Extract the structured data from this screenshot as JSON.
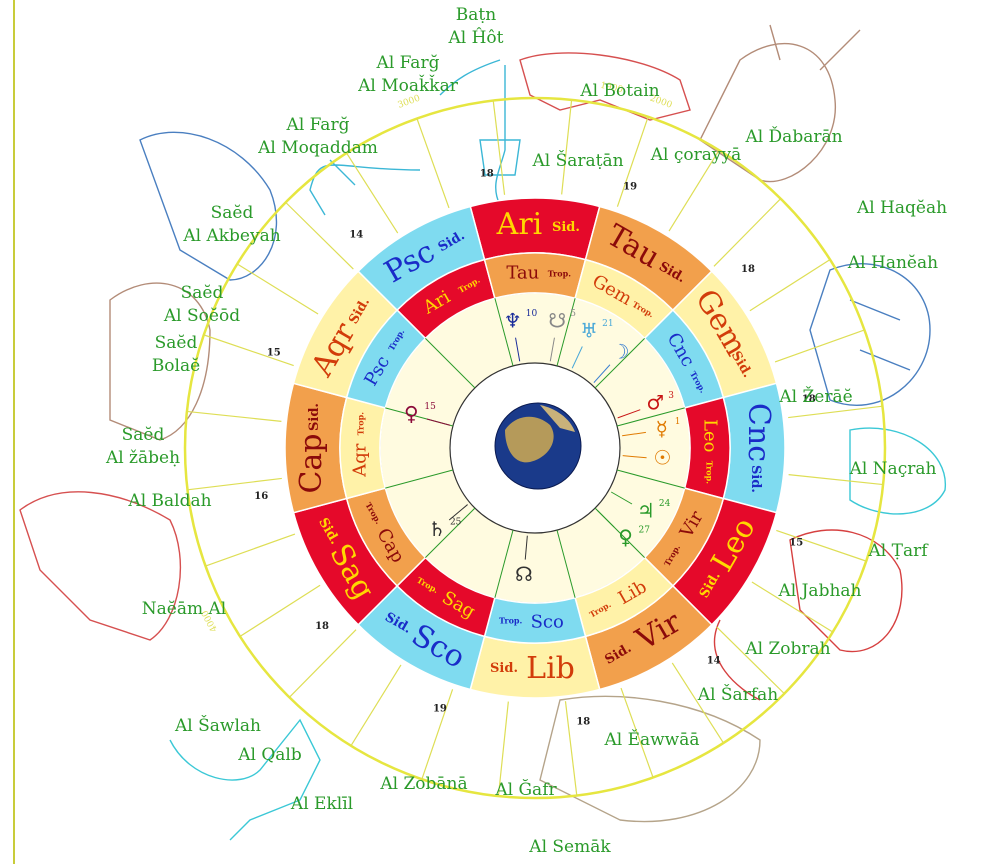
{
  "mansions": [
    {
      "id": "batn-al-hot",
      "lines": [
        "Baṭn",
        "Al Ĥôt"
      ]
    },
    {
      "id": "al-farg-moakkar",
      "lines": [
        "Al Farğ",
        "Al Moaǩǩar"
      ]
    },
    {
      "id": "al-botain",
      "lines": [
        "Al Botain"
      ]
    },
    {
      "id": "al-farg-moqaddam",
      "lines": [
        "Al Farğ",
        "Al Moqaddam"
      ]
    },
    {
      "id": "al-saratan",
      "lines": [
        "Al Šaraṭān"
      ]
    },
    {
      "id": "al-dabaran",
      "lines": [
        "Al Ďabarān"
      ]
    },
    {
      "id": "al-corayya",
      "lines": [
        "Al çorayyā"
      ]
    },
    {
      "id": "sad-al-akbeyah",
      "lines": [
        "Saĕd",
        "Al Akbeyah"
      ]
    },
    {
      "id": "al-haqeah",
      "lines": [
        "Al Haqĕah"
      ]
    },
    {
      "id": "al-haneah",
      "lines": [
        "Al Hanĕah"
      ]
    },
    {
      "id": "sad-al-soeod",
      "lines": [
        "Saĕd",
        "Al Soĕōd"
      ]
    },
    {
      "id": "sad-bolae",
      "lines": [
        "Saĕd",
        "Bolaĕ"
      ]
    },
    {
      "id": "al-zerae",
      "lines": [
        "Al Žerāĕ"
      ]
    },
    {
      "id": "sad-al-zabeh",
      "lines": [
        "Saĕd",
        "Al žābeḥ"
      ]
    },
    {
      "id": "al-nacrah",
      "lines": [
        "Al Naçrah"
      ]
    },
    {
      "id": "al-baldah",
      "lines": [
        "Al Baldah"
      ]
    },
    {
      "id": "al-tarf",
      "lines": [
        "Al Ṭarf"
      ]
    },
    {
      "id": "naeam-al",
      "lines": [
        "Naĕām Al"
      ]
    },
    {
      "id": "al-jabhah",
      "lines": [
        "Al Jabhah"
      ]
    },
    {
      "id": "al-zobrah",
      "lines": [
        "Al Zobrah"
      ]
    },
    {
      "id": "al-sarfah",
      "lines": [
        "Al Šarfah"
      ]
    },
    {
      "id": "al-awwaa",
      "lines": [
        "Al Ěawwāā"
      ]
    },
    {
      "id": "al-sawlah",
      "lines": [
        "Al Šawlah"
      ]
    },
    {
      "id": "al-qalb",
      "lines": [
        "Al Qalb"
      ]
    },
    {
      "id": "al-eklil",
      "lines": [
        "Al Eklīl"
      ]
    },
    {
      "id": "al-zobana",
      "lines": [
        "Al Zobānā"
      ]
    },
    {
      "id": "al-gafr",
      "lines": [
        "Al Ğafr"
      ]
    },
    {
      "id": "al-semak",
      "lines": [
        "Al Semāk"
      ]
    }
  ],
  "sidereal_signs": [
    {
      "abbr": "Ari",
      "tag": "Sid.",
      "color": "#e5092a",
      "text_color": "#ffd800"
    },
    {
      "abbr": "Tau",
      "tag": "Sid.",
      "color": "#f2a04c",
      "text_color": "#8b0a0a"
    },
    {
      "abbr": "Gem",
      "tag": "Sid.",
      "color": "#fff2a8",
      "text_color": "#d23c0a"
    },
    {
      "abbr": "Cnc",
      "tag": "Sid.",
      "color": "#7fdbf0",
      "text_color": "#1a2cc8"
    },
    {
      "abbr": "Leo",
      "tag": "Sid.",
      "color": "#e5092a",
      "text_color": "#ffd800"
    },
    {
      "abbr": "Vir",
      "tag": "Sid.",
      "color": "#f2a04c",
      "text_color": "#8b0a0a"
    },
    {
      "abbr": "Lib",
      "tag": "Sid.",
      "color": "#fff2a8",
      "text_color": "#d23c0a"
    },
    {
      "abbr": "Sco",
      "tag": "Sid.",
      "color": "#7fdbf0",
      "text_color": "#1a2cc8"
    },
    {
      "abbr": "Sag",
      "tag": "Sid.",
      "color": "#e5092a",
      "text_color": "#ffd800"
    },
    {
      "abbr": "Cap",
      "tag": "Sid.",
      "color": "#f2a04c",
      "text_color": "#8b0a0a"
    },
    {
      "abbr": "Aqr",
      "tag": "Sid.",
      "color": "#fff2a8",
      "text_color": "#d23c0a"
    },
    {
      "abbr": "Psc",
      "tag": "Sid.",
      "color": "#7fdbf0",
      "text_color": "#1a2cc8"
    }
  ],
  "tropical_signs": [
    {
      "abbr": "Ari",
      "tag": "Trop.",
      "color": "#e5092a",
      "text_color": "#ffd800"
    },
    {
      "abbr": "Tau",
      "tag": "Trop.",
      "color": "#f2a04c",
      "text_color": "#8b0a0a"
    },
    {
      "abbr": "Gem",
      "tag": "Trop.",
      "color": "#fff2a8",
      "text_color": "#d23c0a"
    },
    {
      "abbr": "Cnc",
      "tag": "Trop.",
      "color": "#7fdbf0",
      "text_color": "#1a2cc8"
    },
    {
      "abbr": "Leo",
      "tag": "Trop.",
      "color": "#e5092a",
      "text_color": "#ffd800"
    },
    {
      "abbr": "Vir",
      "tag": "Trop.",
      "color": "#f2a04c",
      "text_color": "#8b0a0a"
    },
    {
      "abbr": "Lib",
      "tag": "Trop.",
      "color": "#fff2a8",
      "text_color": "#d23c0a"
    },
    {
      "abbr": "Sco",
      "tag": "Trop.",
      "color": "#7fdbf0",
      "text_color": "#1a2cc8"
    },
    {
      "abbr": "Sag",
      "tag": "Trop.",
      "color": "#e5092a",
      "text_color": "#ffd800"
    },
    {
      "abbr": "Cap",
      "tag": "Trop.",
      "color": "#f2a04c",
      "text_color": "#8b0a0a"
    },
    {
      "abbr": "Aqr",
      "tag": "Trop.",
      "color": "#fff2a8",
      "text_color": "#d23c0a"
    },
    {
      "abbr": "Psc",
      "tag": "Trop.",
      "color": "#7fdbf0",
      "text_color": "#1a2cc8"
    }
  ],
  "planets": [
    {
      "glyph": "♆",
      "deg": "10",
      "color": "#1a2c9a"
    },
    {
      "glyph": "☋",
      "deg": "5",
      "color": "#888888"
    },
    {
      "glyph": "♅",
      "deg": "21",
      "color": "#4aa8d8"
    },
    {
      "glyph": "☽",
      "deg": "",
      "color": "#3a7fd0"
    },
    {
      "glyph": "♀",
      "deg": "15",
      "color": "#8b0a3a"
    },
    {
      "glyph": "♂",
      "deg": "3",
      "color": "#c81414"
    },
    {
      "glyph": "☿",
      "deg": "1",
      "color": "#e07a00"
    },
    {
      "glyph": "☉",
      "deg": "",
      "color": "#e07a00"
    },
    {
      "glyph": "♄",
      "deg": "25",
      "color": "#333333"
    },
    {
      "glyph": "♃",
      "deg": "24",
      "color": "#2a9a2a"
    },
    {
      "glyph": "♀",
      "deg": "27",
      "color": "#2a9a2a"
    },
    {
      "glyph": "☊",
      "deg": "",
      "color": "#333333"
    }
  ],
  "ring_numbers": [
    "18",
    "19",
    "18",
    "18",
    "15",
    "14",
    "18",
    "19",
    "18",
    "16",
    "15",
    "14"
  ],
  "outer_arc_labels": [
    "1900",
    "2000",
    "3000",
    "4000"
  ],
  "colors": {
    "mansion_text": "#2a9a2a",
    "ecliptic_circle": "#e6e640",
    "divider": "#cccc33"
  }
}
